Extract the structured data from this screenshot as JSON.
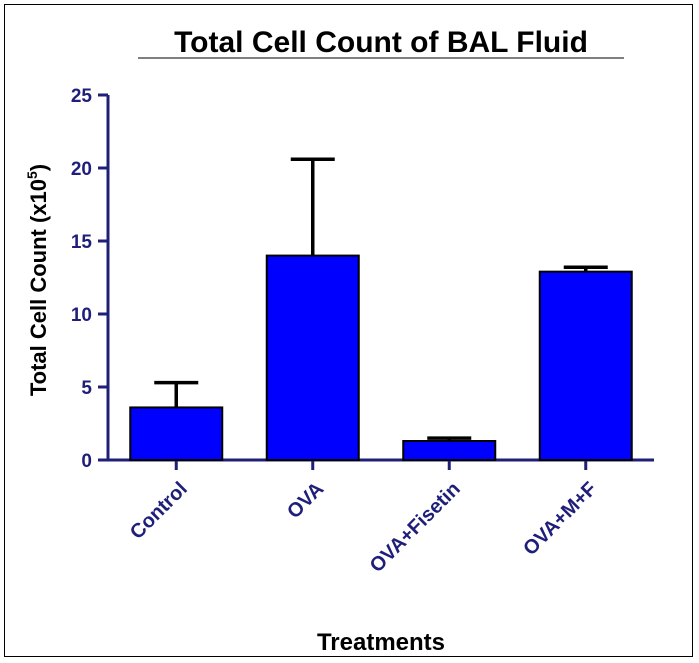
{
  "chart_data": {
    "type": "bar",
    "title": "Total Cell Count of BAL Fluid",
    "xlabel": "Treatments",
    "ylabel": "Total Cell  Count (x10",
    "ylabel_sup": "5",
    "ylabel_end": ")",
    "categories": [
      "Control",
      "OVA",
      "OVA+Fisetin",
      "OVA+M+F"
    ],
    "values": [
      3.6,
      14.0,
      1.3,
      12.9
    ],
    "error_upper": [
      5.3,
      20.6,
      1.5,
      13.2
    ],
    "ylim": [
      0,
      25
    ],
    "yticks": [
      "0",
      "5",
      "10",
      "15",
      "20",
      "25"
    ],
    "grid": false,
    "colors": {
      "bar": "#0000ff",
      "axis": "#1f1f7a",
      "error": "#000000"
    }
  }
}
